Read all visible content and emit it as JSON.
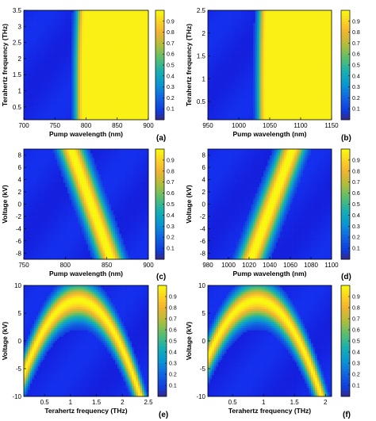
{
  "chart_data": [
    {
      "panel_label": "(a)",
      "type": "heatmap",
      "xlabel": "Pump wavelength (nm)",
      "ylabel": "Terahertz frequency (THz)",
      "xlim": [
        700,
        900
      ],
      "ylim": [
        0.1,
        3.5
      ],
      "xticks": [
        700,
        750,
        800,
        850,
        900
      ],
      "yticks": [
        0.5,
        1,
        1.5,
        2,
        2.5,
        3,
        3.5
      ],
      "colorbar": {
        "ticks": [
          0.1,
          0.2,
          0.3,
          0.4,
          0.5,
          0.6,
          0.7,
          0.8,
          0.9
        ],
        "range": [
          0,
          1
        ]
      },
      "pattern": {
        "kind": "parabola",
        "vertex_x": 795,
        "vertex_y": 1.1,
        "a": -0.0029,
        "n_branch": 0.9,
        "n_side": "right"
      }
    },
    {
      "panel_label": "(b)",
      "type": "heatmap",
      "xlabel": "Pump wavelength (nm)",
      "ylabel": "Terahertz frequency (THz)",
      "xlim": [
        950,
        1150
      ],
      "ylim": [
        0.1,
        2.5
      ],
      "xticks": [
        950,
        1000,
        1050,
        1100,
        1150
      ],
      "yticks": [
        0.5,
        1,
        1.5,
        2,
        2.5
      ],
      "colorbar": {
        "ticks": [
          0.1,
          0.2,
          0.3,
          0.4,
          0.5,
          0.6,
          0.7,
          0.8,
          0.9
        ],
        "range": [
          0,
          1
        ]
      },
      "pattern": {
        "kind": "parabola",
        "vertex_x": 1043,
        "vertex_y": 0.85,
        "a": -0.0021,
        "n_branch": 0.9,
        "n_side": "right"
      }
    },
    {
      "panel_label": "(c)",
      "type": "heatmap",
      "xlabel": "Pump wavelength (nm)",
      "ylabel": "Voltage (kV)",
      "xlim": [
        750,
        900
      ],
      "ylim": [
        -9,
        9
      ],
      "xticks": [
        750,
        800,
        850,
        900
      ],
      "yticks": [
        -8,
        -6,
        -4,
        -2,
        0,
        2,
        4,
        6,
        8
      ],
      "colorbar": {
        "ticks": [
          0.1,
          0.2,
          0.3,
          0.4,
          0.5,
          0.6,
          0.7,
          0.8,
          0.9
        ],
        "range": [
          0,
          1
        ]
      },
      "pattern": {
        "kind": "band",
        "x_at_top": 807,
        "x_at_bottom": 855,
        "width": 18
      }
    },
    {
      "panel_label": "(d)",
      "type": "heatmap",
      "xlabel": "Pump wavelength (nm)",
      "ylabel": "Voltage (kV)",
      "xlim": [
        980,
        1100
      ],
      "ylim": [
        -9,
        9
      ],
      "xticks": [
        980,
        1000,
        1020,
        1040,
        1060,
        1080,
        1100
      ],
      "yticks": [
        -8,
        -6,
        -4,
        -2,
        0,
        2,
        4,
        6,
        8
      ],
      "colorbar": {
        "ticks": [
          0.1,
          0.2,
          0.3,
          0.4,
          0.5,
          0.6,
          0.7,
          0.8,
          0.9
        ],
        "range": [
          0,
          1
        ]
      },
      "pattern": {
        "kind": "band",
        "x_at_top": 1062,
        "x_at_bottom": 1022,
        "width": 15
      }
    },
    {
      "panel_label": "(e)",
      "type": "heatmap",
      "xlabel": "Terahertz frequency (THz)",
      "ylabel": "Voltage (kV)",
      "xlim": [
        0.1,
        2.5
      ],
      "ylim": [
        -10,
        10
      ],
      "xticks": [
        0.5,
        1,
        1.5,
        2,
        2.5
      ],
      "yticks": [
        -10,
        -5,
        0,
        5,
        10
      ],
      "colorbar": {
        "ticks": [
          0.1,
          0.2,
          0.3,
          0.4,
          0.5,
          0.6,
          0.7,
          0.8,
          0.9
        ],
        "range": [
          0,
          1
        ]
      },
      "pattern": {
        "kind": "arch",
        "center_x": 1.15,
        "peak_y": 7.5,
        "k": 12,
        "width": 4.5
      }
    },
    {
      "panel_label": "(f)",
      "type": "heatmap",
      "xlabel": "Terahertz frequency (THz)",
      "ylabel": "Voltage (kV)",
      "xlim": [
        0.1,
        2.1
      ],
      "ylim": [
        -10,
        10
      ],
      "xticks": [
        0.5,
        1,
        1.5,
        2
      ],
      "yticks": [
        -10,
        -5,
        0,
        5,
        10
      ],
      "colorbar": {
        "ticks": [
          0.1,
          0.2,
          0.3,
          0.4,
          0.5,
          0.6,
          0.7,
          0.8,
          0.9
        ],
        "range": [
          0,
          1
        ]
      },
      "pattern": {
        "kind": "arch",
        "center_x": 0.9,
        "peak_y": 7.5,
        "k": 16,
        "width": 4.5
      }
    }
  ]
}
